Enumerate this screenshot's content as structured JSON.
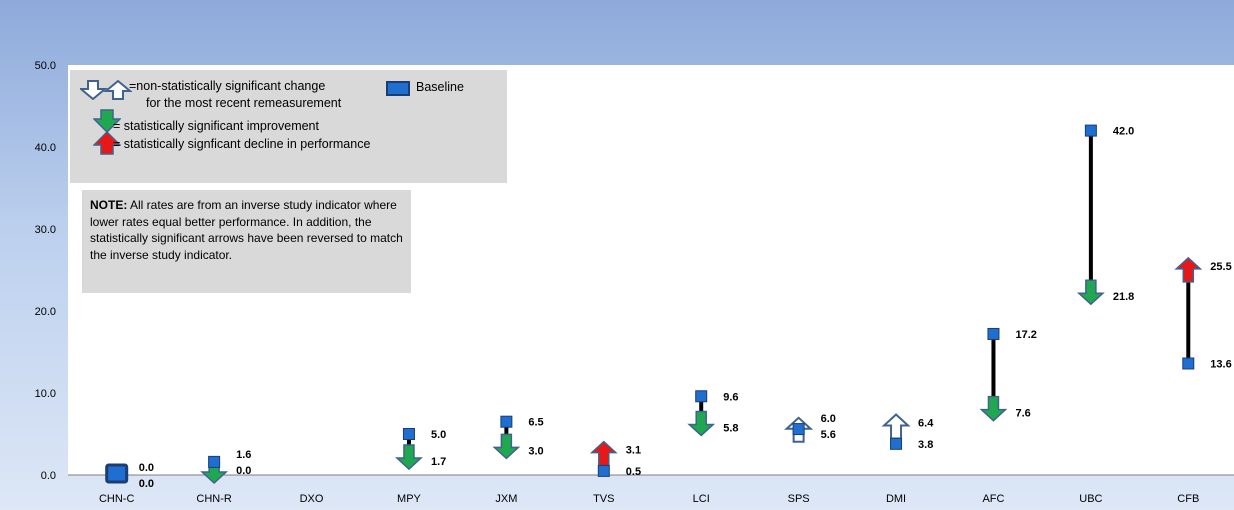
{
  "chart_data": {
    "type": "dumbbell",
    "ylim": [
      0,
      50
    ],
    "yticks": [
      "0.0",
      "10.0",
      "20.0",
      "30.0",
      "40.0",
      "50.0"
    ],
    "categories": [
      "CHN-C",
      "CHN-R",
      "DXO",
      "MPY",
      "JXM",
      "TVS",
      "LCI",
      "SPS",
      "DMI",
      "AFC",
      "UBC",
      "CFB"
    ],
    "baseline": [
      0.0,
      1.6,
      null,
      5.0,
      6.5,
      0.5,
      9.6,
      5.6,
      3.8,
      17.2,
      42.0,
      13.6
    ],
    "remeasurement": [
      0.0,
      0.0,
      null,
      1.7,
      3.0,
      3.1,
      5.8,
      6.0,
      6.4,
      7.6,
      21.8,
      25.5
    ],
    "baseline_labels": [
      "0.0",
      "1.6",
      "",
      "5.0",
      "6.5",
      "0.5",
      "9.6",
      "5.6",
      "3.8",
      "17.2",
      "42.0",
      "13.6"
    ],
    "remeasurement_labels": [
      "0.0",
      "0.0",
      "",
      "1.7",
      "3.0",
      "3.1",
      "5.8",
      "6.0",
      "6.4",
      "7.6",
      "21.8",
      "25.5"
    ],
    "arrows": [
      "none",
      "improve",
      "none",
      "improve",
      "improve",
      "decline",
      "improve",
      "nonsig-up",
      "nonsig-up",
      "improve",
      "improve",
      "decline"
    ],
    "colors": {
      "baseline": "#1f6fd1",
      "baseline_border": "#1a3d73",
      "improve": "#1fa84f",
      "decline": "#e81818",
      "arrow_outline": "#3f628f",
      "nonsig_fill": "#ffffff",
      "connector": "#000000"
    }
  },
  "legend": {
    "nonsig_line1": "=non-statistically significant change",
    "nonsig_line2": "for the most recent remeasurement",
    "baseline_label": "Baseline",
    "improve_label": "= statistically significant improvement",
    "decline_label": "= statistically signficant decline in performance"
  },
  "note": {
    "label": "NOTE:",
    "text": " All rates are from an inverse study indicator where lower rates equal better performance. In addition, the statistically significant arrows have been reversed to match the inverse study indicator."
  }
}
